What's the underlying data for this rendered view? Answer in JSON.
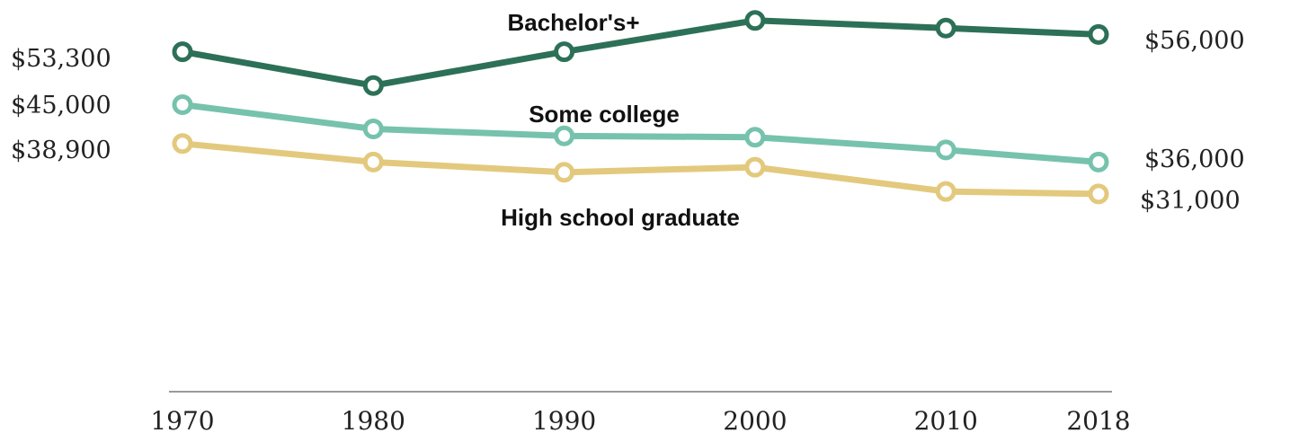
{
  "chart_data": {
    "type": "line",
    "x": [
      1970,
      1980,
      1990,
      2000,
      2010,
      2018
    ],
    "x_tick_labels": [
      "1970",
      "1980",
      "1990",
      "2000",
      "2010",
      "2018"
    ],
    "title": "",
    "xlabel": "",
    "ylabel": "",
    "ylim": [
      0,
      60000
    ],
    "grid": false,
    "legend": "none",
    "series": [
      {
        "name": "Bachelor's+",
        "color": "#2d7058",
        "values": [
          53300,
          48000,
          53300,
          58200,
          57000,
          56000
        ],
        "start_label": "$53,300",
        "end_label": "$56,000"
      },
      {
        "name": "Some college",
        "color": "#76c2ad",
        "values": [
          45000,
          41200,
          40100,
          39900,
          37900,
          36000
        ],
        "start_label": "$45,000",
        "end_label": "$36,000"
      },
      {
        "name": "High school graduate",
        "color": "#e3c97d",
        "values": [
          38900,
          36000,
          34400,
          35200,
          31400,
          31000
        ],
        "start_label": "$38,900",
        "end_label": "$31,000"
      }
    ]
  }
}
